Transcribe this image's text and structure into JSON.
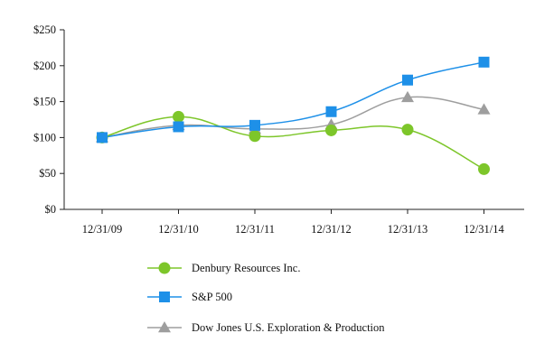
{
  "chart_data": {
    "type": "line",
    "title": "",
    "xlabel": "",
    "ylabel": "",
    "categories": [
      "12/31/09",
      "12/31/10",
      "12/31/11",
      "12/31/12",
      "12/31/13",
      "12/31/14"
    ],
    "ylim": [
      0,
      250
    ],
    "yticks": [
      0,
      50,
      100,
      150,
      200,
      250
    ],
    "ytick_labels": [
      "$0",
      "$50",
      "$100",
      "$150",
      "$200",
      "$250"
    ],
    "grid": false,
    "legend_position": "bottom",
    "series": [
      {
        "name": "Denbury Resources Inc.",
        "values": [
          100,
          129,
          102,
          110,
          111,
          56
        ],
        "color": "#7dc62a",
        "marker": "circle"
      },
      {
        "name": "S&P 500",
        "values": [
          100,
          115,
          117,
          136,
          180,
          205
        ],
        "color": "#1e90e8",
        "marker": "square"
      },
      {
        "name": "Dow Jones U.S. Exploration & Production",
        "values": [
          100,
          117,
          112,
          118,
          156,
          139
        ],
        "color": "#9e9e9e",
        "marker": "triangle"
      }
    ]
  }
}
